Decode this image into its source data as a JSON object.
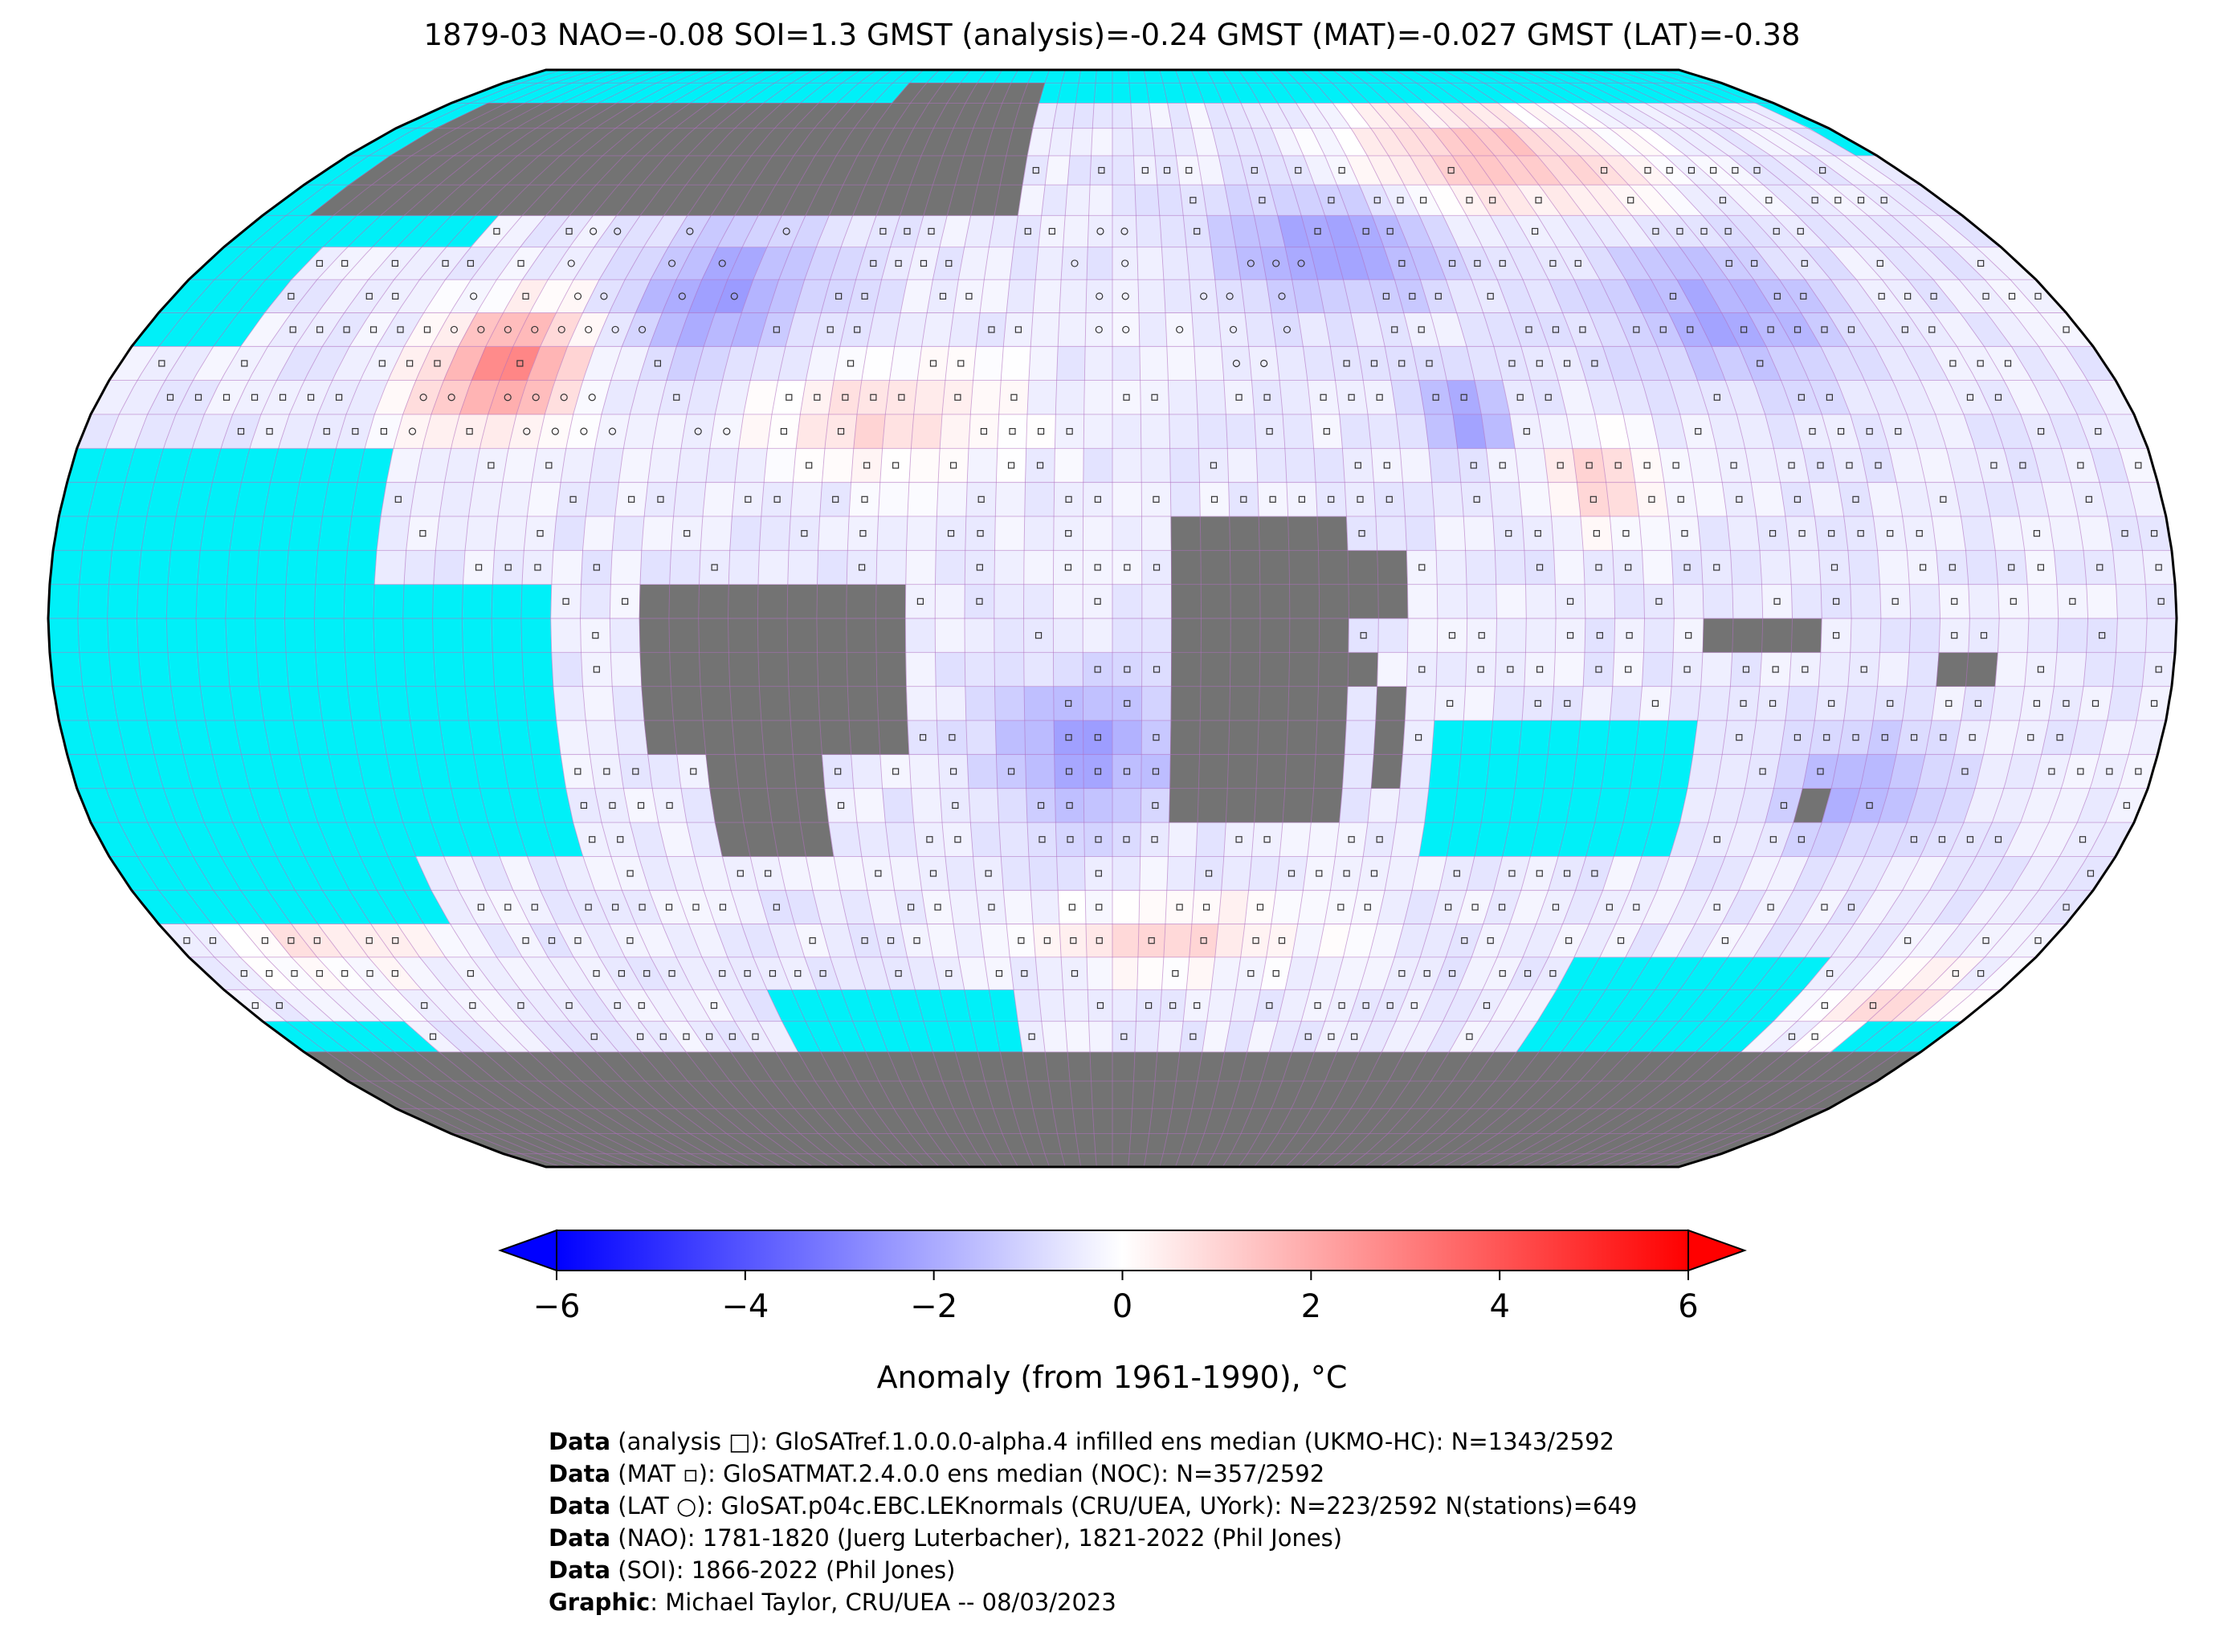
{
  "title": "1879-03 NAO=-0.08 SOI=1.3 GMST (analysis)=-0.24 GMST (MAT)=-0.027 GMST (LAT)=-0.38",
  "colors": {
    "ocean_nodata": "#00f0f8",
    "land_nodata": "#737373",
    "grid_lines": "#b070c0",
    "cold_extreme": "#0000ff",
    "neutral": "#ffffff",
    "warm_extreme": "#ff0000"
  },
  "map": {
    "projection": "Robinson",
    "grid": "5-degree lat/lon cells",
    "anomaly_field_description_icon": "temperature-anomaly-field"
  },
  "colorbar": {
    "label": "Anomaly (from 1961-1990), °C",
    "range": [
      -6,
      6
    ],
    "ticks": [
      "−6",
      "−4",
      "−2",
      "0",
      "2",
      "4",
      "6"
    ],
    "extend": "both"
  },
  "credits": [
    {
      "key": "Data",
      "text": " (analysis □): GloSATref.1.0.0.0-alpha.4 infilled ens median (UKMO-HC): N=1343/2592"
    },
    {
      "key": "Data",
      "text": " (MAT ▫): GloSATMAT.2.4.0.0 ens median (NOC): N=357/2592"
    },
    {
      "key": "Data",
      "text": " (LAT ○): GloSAT.p04c.EBC.LEKnormals (CRU/UEA, UYork): N=223/2592 N(stations)=649"
    },
    {
      "key": "Data",
      "text": " (NAO): 1781-1820 (Juerg Luterbacher), 1821-2022 (Phil Jones)"
    },
    {
      "key": "Data",
      "text": " (SOI): 1866-2022 (Phil Jones)"
    },
    {
      "key": "Graphic",
      "text": ": Michael Taylor, CRU/UEA -- 08/03/2023"
    }
  ]
}
